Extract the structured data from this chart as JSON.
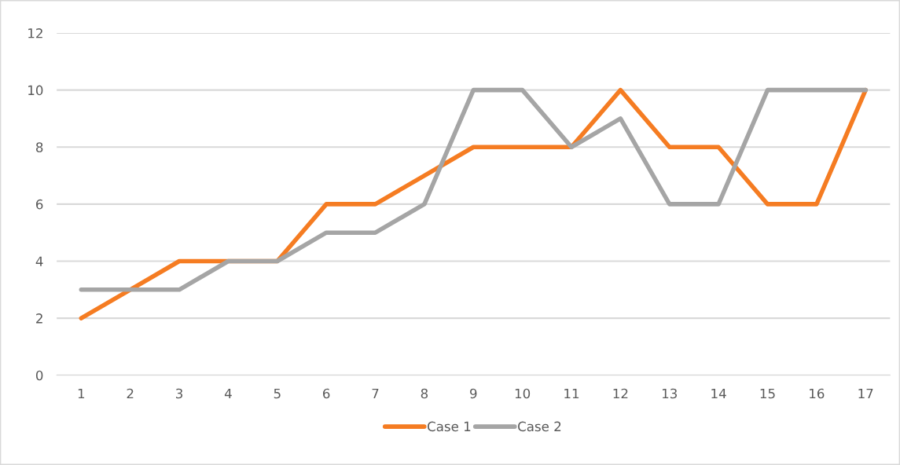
{
  "chart_data": {
    "type": "line",
    "categories": [
      "1",
      "2",
      "3",
      "4",
      "5",
      "6",
      "7",
      "8",
      "9",
      "10",
      "11",
      "12",
      "13",
      "14",
      "15",
      "16",
      "17"
    ],
    "series": [
      {
        "name": "Case 1",
        "color": "#f57c22",
        "values": [
          2,
          3,
          4,
          4,
          4,
          6,
          6,
          7,
          8,
          8,
          8,
          10,
          8,
          8,
          6,
          6,
          10
        ]
      },
      {
        "name": "Case 2",
        "color": "#a5a5a5",
        "values": [
          3,
          3,
          3,
          4,
          4,
          5,
          5,
          6,
          10,
          10,
          8,
          9,
          6,
          6,
          10,
          10,
          10
        ]
      }
    ],
    "ylim": [
      0,
      12
    ],
    "yticks": [
      0,
      2,
      4,
      6,
      8,
      10,
      12
    ],
    "grid": "y",
    "legend": "bottom",
    "marker": "none",
    "line_style": "solid"
  }
}
